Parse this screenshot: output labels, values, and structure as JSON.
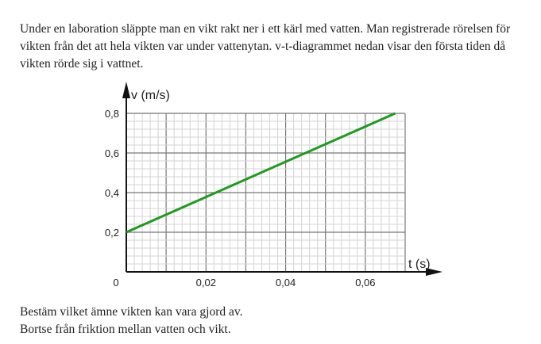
{
  "intro": "Under en laboration släppte man en vikt rakt ner i ett kärl med vatten. Man registrerade  rörelsen för vikten från det att hela vikten var under vattenytan. v-t-diagrammet nedan visar den första tiden då vikten rörde sig i vattnet.",
  "question_line1": "Bestäm vilket ämne vikten kan vara gjord av.",
  "question_line2": "Bortse från friktion mellan vatten och vikt.",
  "chart_data": {
    "type": "line",
    "xlabel": "t (s)",
    "ylabel": "v (m/s)",
    "xlim": [
      0,
      0.07
    ],
    "ylim": [
      0,
      0.8
    ],
    "x_ticks": [
      0,
      0.02,
      0.04,
      0.06
    ],
    "x_tick_labels": [
      "0",
      "0,02",
      "0,04",
      "0,06"
    ],
    "y_ticks": [
      0.2,
      0.4,
      0.6,
      0.8
    ],
    "y_tick_labels": [
      "0,2",
      "0,4",
      "0,6",
      "0,8"
    ],
    "grid": true,
    "series": [
      {
        "x": [
          0,
          0.0675
        ],
        "y": [
          0.2,
          0.8
        ],
        "color": "#1e9a1e"
      }
    ]
  }
}
